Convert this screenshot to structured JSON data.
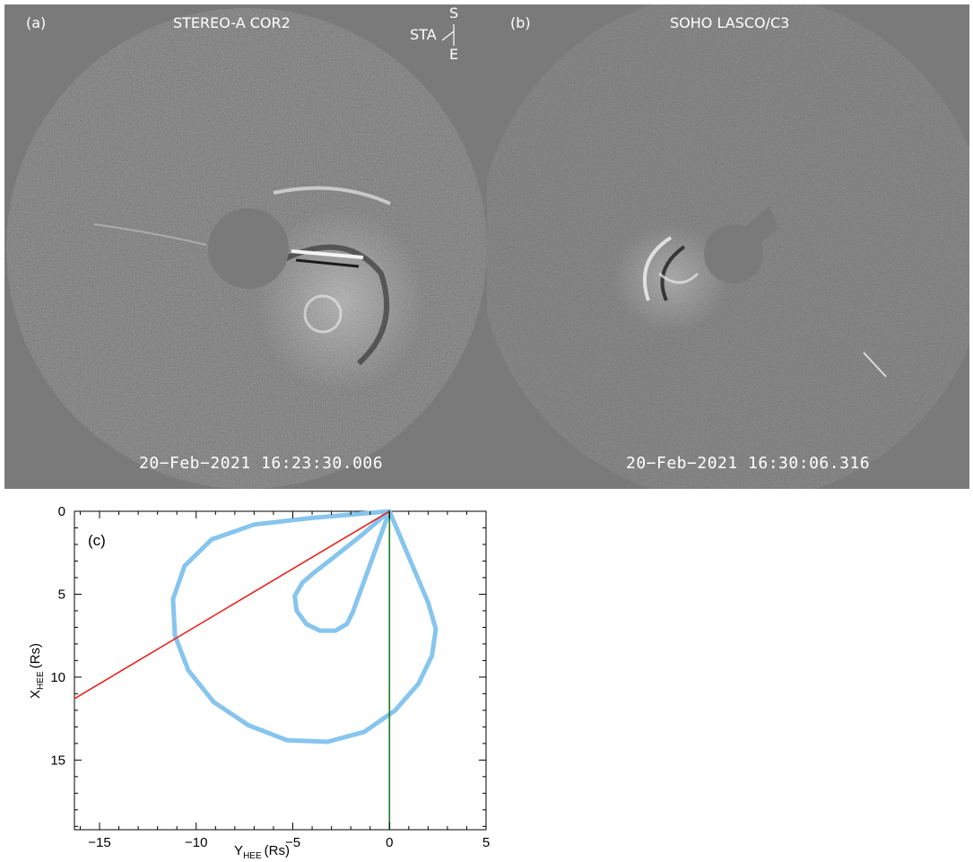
{
  "panel_a": {
    "label": "(a)",
    "instrument": "STEREO-A COR2",
    "timestamp": "20−Feb−2021  16:23:30.006",
    "compass": {
      "spacecraft": "STA",
      "up": "S",
      "down": "E"
    }
  },
  "panel_b": {
    "label": "(b)",
    "instrument": "SOHO LASCO/C3",
    "timestamp": "20−Feb−2021  16:30:06.316"
  },
  "chart_data": {
    "type": "line",
    "panel_label": "(c)",
    "xlabel_main": "Y",
    "xlabel_sub": "HEE",
    "xlabel_unit": "(Rs)",
    "ylabel_main": "X",
    "ylabel_sub": "HEE",
    "ylabel_unit": "(Rs)",
    "xlim": [
      -16.3,
      5
    ],
    "ylim": [
      0,
      19.2
    ],
    "y_inverted": true,
    "xticks": [
      -15,
      -10,
      -5,
      0,
      5
    ],
    "yticks": [
      0,
      5,
      10,
      15
    ],
    "series": [
      {
        "color": "#86c5ee",
        "x": [
          0,
          -1.5,
          -4,
          -7,
          -9.2,
          -10.6,
          -11.2,
          -11.1,
          -10.4,
          -9.1,
          -7.3,
          -5.3,
          -3.2,
          -1.3,
          0.3,
          1.5,
          2.2,
          2.4,
          2.0,
          1.2,
          0
        ],
        "y": [
          0,
          0.15,
          0.4,
          0.8,
          1.7,
          3.3,
          5.3,
          7.5,
          9.6,
          11.5,
          12.9,
          13.8,
          13.9,
          13.3,
          12.0,
          10.4,
          8.7,
          7.1,
          5.5,
          3.3,
          0
        ]
      },
      {
        "color": "#86c5ee",
        "x": [
          0,
          -1.4,
          -2.8,
          -3.9,
          -4.5,
          -4.9,
          -4.8,
          -4.3,
          -3.6,
          -2.8,
          -2.2,
          -1.9,
          0
        ],
        "y": [
          0,
          1.4,
          2.7,
          3.7,
          4.3,
          5.1,
          6.0,
          6.8,
          7.2,
          7.2,
          6.8,
          6.1,
          0
        ]
      },
      {
        "color": "#e8231c",
        "x": [
          0,
          -16.3
        ],
        "y": [
          0,
          11.3
        ]
      },
      {
        "color": "#1e7a1e",
        "x": [
          0,
          0
        ],
        "y": [
          0,
          19.2
        ]
      }
    ]
  }
}
